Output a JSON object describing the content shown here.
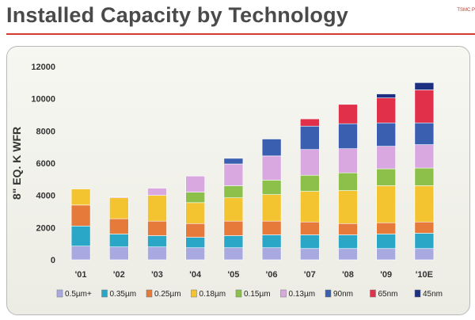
{
  "header": {
    "title": "Installed Capacity by Technology",
    "corner_tag": "TSMC P",
    "rule_color": "#d23a2f"
  },
  "chart_data": {
    "type": "bar",
    "stacked": true,
    "title": "",
    "xlabel": "",
    "ylabel": "8\" EQ. K WFR",
    "ylim": [
      0,
      12000
    ],
    "yticks": [
      0,
      2000,
      4000,
      6000,
      8000,
      10000,
      12000
    ],
    "ytick_labels": [
      "0",
      "2000",
      "4000",
      "6000",
      "8000",
      "10000",
      "12000"
    ],
    "grid": false,
    "legend_position": "bottom",
    "categories": [
      "'01",
      "'02",
      "'03",
      "'04",
      "'05",
      "'06",
      "'07",
      "'08",
      "'09",
      "'10E"
    ],
    "series": [
      {
        "name": "0.5µm+",
        "color": "#a9a9e2",
        "values": [
          850,
          800,
          800,
          750,
          750,
          750,
          700,
          700,
          700,
          700
        ]
      },
      {
        "name": "0.35µm",
        "color": "#2aa6c6",
        "values": [
          1250,
          800,
          700,
          650,
          750,
          800,
          850,
          850,
          900,
          950
        ]
      },
      {
        "name": "0.25µm",
        "color": "#e57a3a",
        "values": [
          1300,
          950,
          900,
          850,
          900,
          850,
          800,
          700,
          700,
          700
        ]
      },
      {
        "name": "0.18µm",
        "color": "#f4c430",
        "values": [
          1000,
          1300,
          1600,
          1300,
          1450,
          1650,
          1900,
          2050,
          2300,
          2250
        ]
      },
      {
        "name": "0.15µm",
        "color": "#8cc04a",
        "values": [
          0,
          0,
          0,
          650,
          750,
          900,
          1000,
          1100,
          1050,
          1100
        ]
      },
      {
        "name": "0.13µm",
        "color": "#d9a8e0",
        "values": [
          0,
          50,
          450,
          1000,
          1350,
          1500,
          1600,
          1500,
          1400,
          1450
        ]
      },
      {
        "name": "90nm",
        "color": "#3b5fb0",
        "values": [
          0,
          0,
          0,
          0,
          350,
          1050,
          1450,
          1550,
          1450,
          1350
        ]
      },
      {
        "name": "65nm",
        "color": "#e0304a",
        "values": [
          0,
          0,
          0,
          0,
          0,
          0,
          450,
          1200,
          1550,
          2050
        ]
      },
      {
        "name": "45nm",
        "color": "#1c2f80",
        "values": [
          0,
          0,
          0,
          0,
          0,
          0,
          0,
          0,
          250,
          450
        ]
      }
    ]
  }
}
